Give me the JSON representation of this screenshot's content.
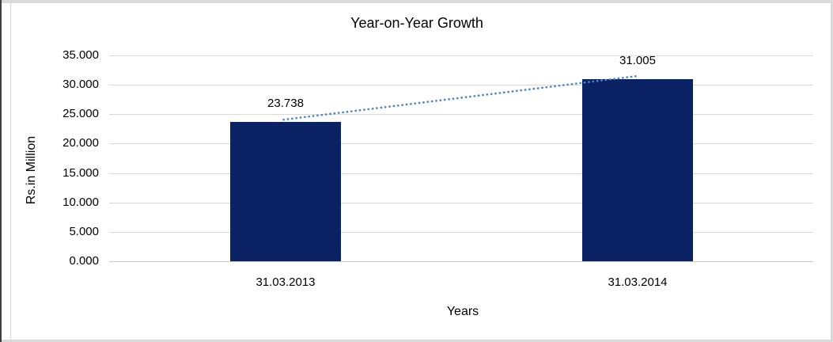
{
  "chart_data": {
    "type": "bar",
    "title": "Year-on-Year Growth",
    "xlabel": "Years",
    "ylabel": "Rs.in Million",
    "categories": [
      "31.03.2013",
      "31.03.2014"
    ],
    "values": [
      23.738,
      31.005
    ],
    "data_labels": [
      "23.738",
      "31.005"
    ],
    "series": [
      {
        "name": "Rs.in Million",
        "values": [
          23.738,
          31.005
        ]
      }
    ],
    "y_ticks": [
      {
        "label": "35.000",
        "value": 35
      },
      {
        "label": "30.000",
        "value": 30
      },
      {
        "label": "25.000",
        "value": 25
      },
      {
        "label": "20.000",
        "value": 20
      },
      {
        "label": "15.000",
        "value": 15
      },
      {
        "label": "10.000",
        "value": 10
      },
      {
        "label": "5.000",
        "value": 5
      },
      {
        "label": "0.000",
        "value": 0
      }
    ],
    "ylim": [
      0,
      35
    ],
    "grid": true,
    "legend": "none",
    "trendline": {
      "type": "linear",
      "style": "dotted",
      "color": "#4a86c8"
    },
    "colors": {
      "bar": "#0b2265",
      "gridline": "#d9d9d9",
      "axis_line": "#c9c9c9",
      "frame": "#d9d9d9",
      "edge_dark": "#3f3f3f",
      "text": "#000000"
    }
  }
}
